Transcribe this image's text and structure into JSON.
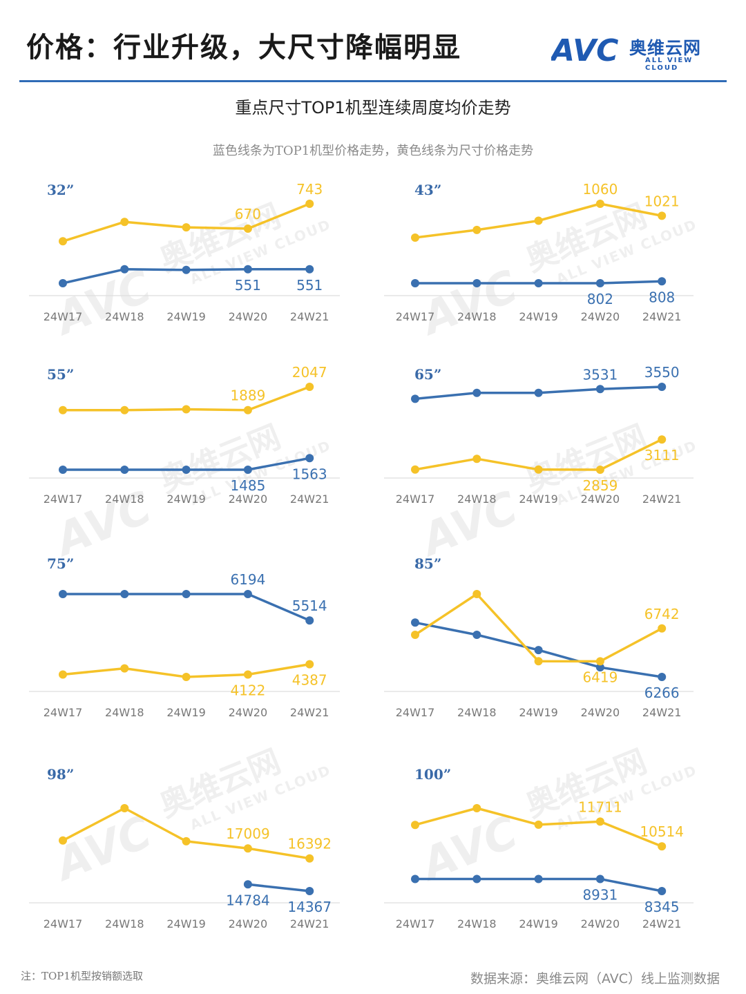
{
  "header": {
    "title": "价格：行业升级，大尺寸降幅明显",
    "brand_mark": "AVC",
    "brand_cn": "奥维云网",
    "brand_en": "ALL VIEW CLOUD"
  },
  "watermark": {
    "mark": "AVC",
    "cn": "奥维云网",
    "en": "ALL VIEW CLOUD"
  },
  "chart_title": "重点尺寸TOP1机型连续周度均价走势",
  "chart_subtitle": "蓝色线条为TOP1机型价格走势，黄色线条为尺寸价格走势",
  "colors": {
    "top1": "#3a70b0",
    "size_avg": "#f5c228",
    "axis": "#dddddd",
    "tick": "#777777",
    "panel_label": "#3a6aa8"
  },
  "chart_data": [
    {
      "type": "line",
      "panel": "32”",
      "categories": [
        "24W17",
        "24W18",
        "24W19",
        "24W20",
        "24W21"
      ],
      "series": [
        {
          "role": "size_avg",
          "values": [
            633,
            690,
            674,
            670,
            743
          ],
          "labels": [
            "",
            "",
            "",
            "670",
            "743"
          ]
        },
        {
          "role": "top1",
          "values": [
            510,
            551,
            549,
            551,
            551
          ],
          "labels": [
            "",
            "",
            "",
            "551",
            "551"
          ]
        }
      ]
    },
    {
      "type": "line",
      "panel": "43”",
      "categories": [
        "24W17",
        "24W18",
        "24W19",
        "24W20",
        "24W21"
      ],
      "series": [
        {
          "role": "size_avg",
          "values": [
            950,
            975,
            1005,
            1060,
            1021
          ],
          "labels": [
            "",
            "",
            "",
            "1060",
            "1021"
          ]
        },
        {
          "role": "top1",
          "values": [
            802,
            802,
            802,
            802,
            808
          ],
          "labels": [
            "",
            "",
            "",
            "802",
            "808"
          ]
        }
      ]
    },
    {
      "type": "line",
      "panel": "55”",
      "categories": [
        "24W17",
        "24W18",
        "24W19",
        "24W20",
        "24W21"
      ],
      "series": [
        {
          "role": "size_avg",
          "values": [
            1889,
            1889,
            1895,
            1889,
            2047
          ],
          "labels": [
            "",
            "",
            "",
            "1889",
            "2047"
          ]
        },
        {
          "role": "top1",
          "values": [
            1485,
            1485,
            1485,
            1485,
            1563
          ],
          "labels": [
            "",
            "",
            "",
            "1485",
            "1563"
          ]
        }
      ]
    },
    {
      "type": "line",
      "panel": "65”",
      "categories": [
        "24W17",
        "24W18",
        "24W19",
        "24W20",
        "24W21"
      ],
      "series": [
        {
          "role": "top1",
          "values": [
            3450,
            3500,
            3500,
            3531,
            3550
          ],
          "labels": [
            "",
            "",
            "",
            "3531",
            "3550"
          ]
        },
        {
          "role": "size_avg",
          "values": [
            2860,
            2950,
            2860,
            2859,
            3111
          ],
          "labels": [
            "",
            "",
            "",
            "2859",
            "3111"
          ]
        }
      ]
    },
    {
      "type": "line",
      "panel": "75”",
      "categories": [
        "24W17",
        "24W18",
        "24W19",
        "24W20",
        "24W21"
      ],
      "series": [
        {
          "role": "top1",
          "values": [
            6194,
            6194,
            6194,
            6194,
            5514
          ],
          "labels": [
            "",
            "",
            "",
            "6194",
            "5514"
          ]
        },
        {
          "role": "size_avg",
          "values": [
            4122,
            4280,
            4060,
            4122,
            4387
          ],
          "labels": [
            "",
            "",
            "",
            "4122",
            "4387"
          ]
        }
      ]
    },
    {
      "type": "line",
      "panel": "85”",
      "categories": [
        "24W17",
        "24W18",
        "24W19",
        "24W20",
        "24W21"
      ],
      "series": [
        {
          "role": "top1",
          "values": [
            6800,
            6680,
            6530,
            6360,
            6266
          ],
          "labels": [
            "",
            "",
            "",
            "",
            "6266"
          ]
        },
        {
          "role": "size_avg",
          "values": [
            6680,
            7080,
            6420,
            6419,
            6742
          ],
          "labels": [
            "",
            "",
            "",
            "6419",
            "6742"
          ]
        }
      ]
    },
    {
      "type": "line",
      "panel": "98”",
      "categories": [
        "24W17",
        "24W18",
        "24W19",
        "24W20",
        "24W21"
      ],
      "series": [
        {
          "role": "size_avg",
          "values": [
            17500,
            19500,
            17450,
            17009,
            16392
          ],
          "labels": [
            "",
            "",
            "",
            "17009",
            "16392"
          ]
        },
        {
          "role": "top1",
          "values": [
            null,
            null,
            null,
            14784,
            14367
          ],
          "labels": [
            "",
            "",
            "",
            "14784",
            "14367"
          ]
        }
      ]
    },
    {
      "type": "line",
      "panel": "100”",
      "categories": [
        "24W17",
        "24W18",
        "24W19",
        "24W20",
        "24W21"
      ],
      "series": [
        {
          "role": "size_avg",
          "values": [
            11550,
            12360,
            11560,
            11711,
            10514
          ],
          "labels": [
            "",
            "",
            "",
            "11711",
            "10514"
          ]
        },
        {
          "role": "top1",
          "values": [
            8931,
            8931,
            8931,
            8931,
            8345
          ],
          "labels": [
            "",
            "",
            "",
            "8931",
            "8345"
          ]
        }
      ]
    }
  ],
  "footer": {
    "note": "注：TOP1机型按销额选取",
    "source": "数据来源：奥维云网（AVC）线上监测数据"
  }
}
